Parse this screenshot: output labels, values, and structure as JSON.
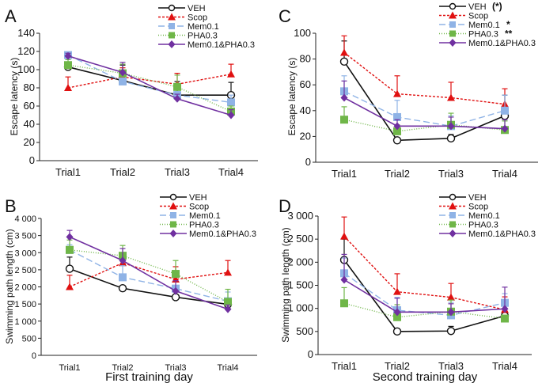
{
  "series_styles": {
    "VEH": {
      "color": "#111111",
      "dash": "",
      "marker": "circle-open"
    },
    "Scop": {
      "color": "#e01010",
      "dash": "3,2",
      "marker": "triangle"
    },
    "Mem0.1": {
      "color": "#8fb3e6",
      "dash": "8,4",
      "marker": "square"
    },
    "PHA0.3": {
      "color": "#6fb648",
      "dash": "1,2",
      "marker": "square"
    },
    "Mem0.1&PHA0.3": {
      "color": "#7030a0",
      "dash": "",
      "marker": "diamond"
    }
  },
  "chart_data": [
    {
      "panel": "A",
      "type": "line",
      "categories": [
        "Trial1",
        "Trial2",
        "Trial3",
        "Trial4"
      ],
      "ylabel": "Escape latency (s)",
      "xlabel": "",
      "ylim": [
        0,
        140
      ],
      "yticks": [
        0,
        20,
        40,
        60,
        80,
        100,
        120,
        140
      ],
      "ytick_labels": [
        "0",
        "20",
        "40",
        "60",
        "80",
        "100",
        "120",
        "140"
      ],
      "legend": "top-right",
      "series": [
        {
          "name": "VEH",
          "annotation": "",
          "values": [
            103,
            88,
            72,
            72
          ],
          "error": [
            3,
            17,
            15,
            14
          ]
        },
        {
          "name": "Scop",
          "annotation": "",
          "values": [
            80,
            92,
            84,
            95
          ],
          "error": [
            12,
            10,
            12,
            11
          ]
        },
        {
          "name": "Mem0.1",
          "annotation": "",
          "values": [
            116,
            87,
            72,
            64
          ],
          "error": [
            2,
            3,
            4,
            8
          ]
        },
        {
          "name": "PHA0.3",
          "annotation": "",
          "values": [
            105,
            96,
            81,
            54
          ],
          "error": [
            6,
            10,
            13,
            6
          ]
        },
        {
          "name": "Mem0.1&PHA0.3",
          "annotation": "",
          "values": [
            115,
            97,
            68,
            50
          ],
          "error": [
            3,
            11,
            5,
            6
          ]
        }
      ]
    },
    {
      "panel": "C",
      "type": "line",
      "categories": [
        "Trial1",
        "Trial2",
        "Trial3",
        "Trial4"
      ],
      "ylabel": "Escape latency (s)",
      "xlabel": "",
      "ylim": [
        0,
        100
      ],
      "yticks": [
        0,
        20,
        40,
        60,
        80,
        100
      ],
      "ytick_labels": [
        "0",
        "20",
        "40",
        "60",
        "80",
        "100"
      ],
      "legend": "top-right",
      "series": [
        {
          "name": "VEH",
          "annotation": "(*)",
          "values": [
            78,
            17,
            18.5,
            36
          ],
          "error": [
            16,
            0,
            3,
            16
          ]
        },
        {
          "name": "Scop",
          "annotation": "",
          "values": [
            85,
            53,
            50,
            45
          ],
          "error": [
            13,
            14,
            12,
            12
          ]
        },
        {
          "name": "Mem0.1",
          "annotation": "*",
          "values": [
            55,
            35,
            28,
            40
          ],
          "error": [
            12,
            13,
            8,
            12
          ]
        },
        {
          "name": "PHA0.3",
          "annotation": "**",
          "values": [
            33,
            24,
            29,
            25
          ],
          "error": [
            10,
            5,
            9,
            7
          ]
        },
        {
          "name": "Mem0.1&PHA0.3",
          "annotation": "**",
          "values": [
            50,
            28,
            28,
            26
          ],
          "error": [
            13,
            5,
            7,
            7
          ]
        }
      ]
    },
    {
      "panel": "B",
      "type": "line",
      "categories": [
        "Trial1",
        "Trial2",
        "Trial3",
        "Trial4"
      ],
      "ylabel": "Swimming path length (cm)",
      "xlabel": "First training day",
      "ylim": [
        0,
        4000
      ],
      "yticks": [
        0,
        500,
        1000,
        1500,
        2000,
        2500,
        3000,
        3500,
        4000
      ],
      "ytick_labels": [
        "0",
        "500",
        "1 000",
        "1 500",
        "2 000",
        "2 500",
        "3 000",
        "3 500",
        "4 000"
      ],
      "legend": "top-right",
      "series": [
        {
          "name": "VEH",
          "annotation": "",
          "values": [
            2530,
            1960,
            1700,
            1490
          ],
          "error": [
            340,
            0,
            0,
            150
          ]
        },
        {
          "name": "Scop",
          "annotation": "",
          "values": [
            2000,
            2700,
            2220,
            2420
          ],
          "error": [
            340,
            250,
            370,
            350
          ]
        },
        {
          "name": "Mem0.1",
          "annotation": "",
          "values": [
            3080,
            2280,
            1950,
            1580
          ],
          "error": [
            150,
            340,
            0,
            270
          ]
        },
        {
          "name": "PHA0.3",
          "annotation": "",
          "values": [
            3080,
            2910,
            2380,
            1560
          ],
          "error": [
            290,
            300,
            390,
            370
          ]
        },
        {
          "name": "Mem0.1&PHA0.3",
          "annotation": "",
          "values": [
            3460,
            2770,
            1880,
            1350
          ],
          "error": [
            190,
            350,
            300,
            120
          ]
        }
      ]
    },
    {
      "panel": "D",
      "type": "line",
      "categories": [
        "Trial1",
        "Trial2",
        "Trial3",
        "Trial4"
      ],
      "ylabel": "Swimming path length (cm)",
      "xlabel": "Second training day",
      "ylim": [
        0,
        3000
      ],
      "yticks": [
        0,
        500,
        1000,
        1500,
        2000,
        2500,
        3000
      ],
      "ytick_labels": [
        "0",
        "500",
        "1 000",
        "1 500",
        "2 000",
        "2 500",
        "3 000"
      ],
      "legend": "top-right",
      "series": [
        {
          "name": "VEH",
          "annotation": "",
          "values": [
            2050,
            500,
            510,
            840
          ],
          "error": [
            450,
            0,
            100,
            80
          ]
        },
        {
          "name": "Scop",
          "annotation": "",
          "values": [
            2560,
            1360,
            1240,
            970
          ],
          "error": [
            420,
            390,
            300,
            280
          ]
        },
        {
          "name": "Mem0.1",
          "annotation": "",
          "values": [
            1760,
            960,
            850,
            1120
          ],
          "error": [
            330,
            280,
            280,
            200
          ]
        },
        {
          "name": "PHA0.3",
          "annotation": "",
          "values": [
            1110,
            810,
            930,
            780
          ],
          "error": [
            340,
            270,
            250,
            50
          ]
        },
        {
          "name": "Mem0.1&PHA0.3",
          "annotation": "",
          "values": [
            1620,
            920,
            920,
            990
          ],
          "error": [
            550,
            300,
            180,
            470
          ]
        }
      ]
    }
  ]
}
